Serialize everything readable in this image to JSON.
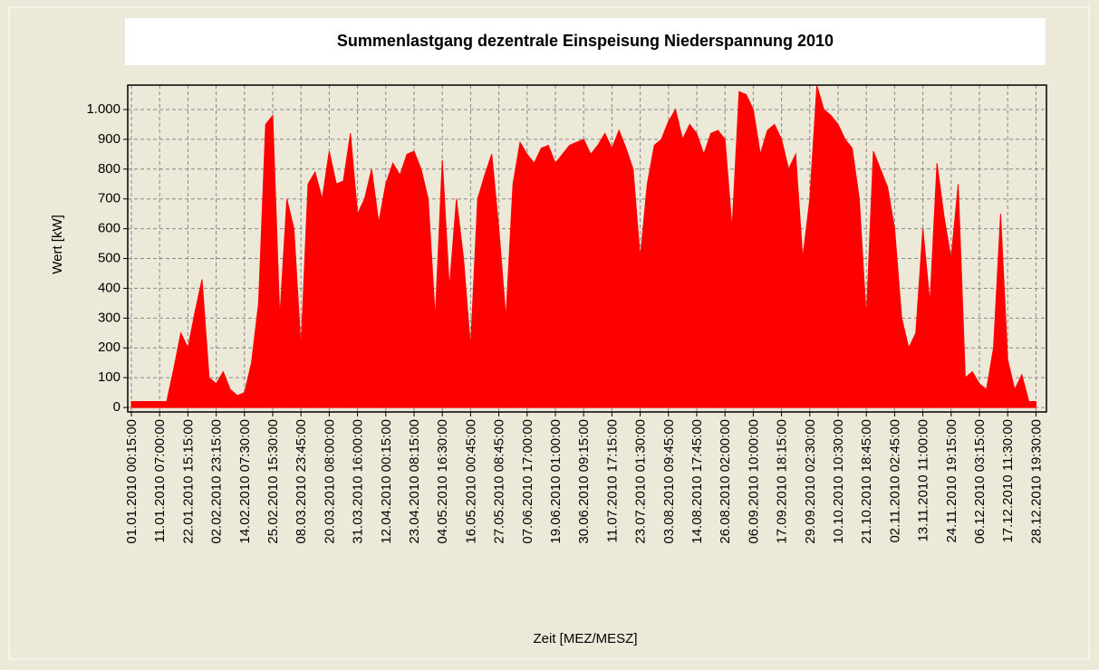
{
  "chart_data": {
    "type": "area",
    "title": "Summenlastgang dezentrale Einspeisung Niederspannung 2010",
    "xlabel": "Zeit [MEZ/MESZ]",
    "ylabel": "Wert [kW]",
    "color": "#ff0000",
    "grid": true,
    "ylim": [
      -15,
      1082
    ],
    "yticks": [
      0,
      100,
      200,
      300,
      400,
      500,
      600,
      700,
      800,
      900,
      {
        "value": 1000,
        "label": "1.000"
      }
    ],
    "categories": [
      "01.01.2010 00:15:00",
      null,
      null,
      null,
      "11.01.2010 07:00:00",
      null,
      null,
      null,
      "22.01.2010 15:15:00",
      null,
      null,
      null,
      "02.02.2010 23:15:00",
      null,
      null,
      null,
      "14.02.2010 07:30:00",
      null,
      null,
      null,
      "25.02.2010 15:30:00",
      null,
      null,
      null,
      "08.03.2010 23:45:00",
      null,
      null,
      null,
      "20.03.2010 08:00:00",
      null,
      null,
      null,
      "31.03.2010 16:00:00",
      null,
      null,
      null,
      "12.04.2010 00:15:00",
      null,
      null,
      null,
      "23.04.2010 08:15:00",
      null,
      null,
      null,
      "04.05.2010 16:30:00",
      null,
      null,
      null,
      "16.05.2010 00:45:00",
      null,
      null,
      null,
      "27.05.2010 08:45:00",
      null,
      null,
      null,
      "07.06.2010 17:00:00",
      null,
      null,
      null,
      "19.06.2010 01:00:00",
      null,
      null,
      null,
      "30.06.2010 09:15:00",
      null,
      null,
      null,
      "11.07.2010 17:15:00",
      null,
      null,
      null,
      "23.07.2010 01:30:00",
      null,
      null,
      null,
      "03.08.2010 09:45:00",
      null,
      null,
      null,
      "14.08.2010 17:45:00",
      null,
      null,
      null,
      "26.08.2010 02:00:00",
      null,
      null,
      null,
      "06.09.2010 10:00:00",
      null,
      null,
      null,
      "17.09.2010 18:15:00",
      null,
      null,
      null,
      "29.09.2010 02:30:00",
      null,
      null,
      null,
      "10.10.2010 10:30:00",
      null,
      null,
      null,
      "21.10.2010 18:45:00",
      null,
      null,
      null,
      "02.11.2010 02:45:00",
      null,
      null,
      null,
      "13.11.2010 11:00:00",
      null,
      null,
      null,
      "24.11.2010 19:15:00",
      null,
      null,
      null,
      "06.12.2010 03:15:00",
      null,
      null,
      null,
      "17.12.2010 11:30:00",
      null,
      null,
      null,
      "28.12.2010 19:30:00"
    ],
    "values": [
      20,
      20,
      20,
      20,
      20,
      20,
      130,
      250,
      200,
      320,
      430,
      100,
      80,
      120,
      60,
      40,
      50,
      150,
      350,
      950,
      980,
      300,
      700,
      600,
      200,
      750,
      790,
      700,
      860,
      750,
      760,
      920,
      650,
      700,
      800,
      620,
      750,
      820,
      780,
      850,
      860,
      800,
      700,
      300,
      830,
      400,
      700,
      500,
      200,
      700,
      780,
      850,
      600,
      300,
      750,
      890,
      850,
      820,
      870,
      880,
      820,
      850,
      880,
      890,
      900,
      850,
      880,
      920,
      870,
      930,
      870,
      800,
      500,
      750,
      880,
      900,
      960,
      1000,
      900,
      950,
      920,
      850,
      920,
      930,
      900,
      600,
      1060,
      1050,
      1000,
      850,
      930,
      950,
      900,
      800,
      850,
      500,
      700,
      1080,
      1000,
      980,
      950,
      900,
      870,
      700,
      300,
      860,
      800,
      740,
      600,
      300,
      200,
      250,
      600,
      350,
      820,
      640,
      500,
      750,
      100,
      120,
      80,
      60,
      200,
      650,
      160,
      60,
      110,
      20,
      20
    ]
  }
}
